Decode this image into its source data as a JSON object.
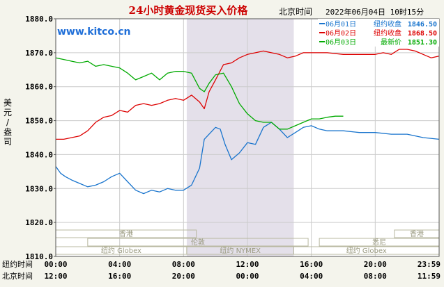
{
  "chart_data": {
    "type": "line",
    "title": "24小时黄金现货买入价格",
    "watermark": "www.kitco.cn",
    "timestamp_prefix": "北京时间",
    "timestamp": "2022年06月04日 10时15分",
    "ylabel": "美元/盎司",
    "ylim": [
      1810,
      1880
    ],
    "y_ticks": [
      "1880.0",
      "1870.0",
      "1860.0",
      "1850.0",
      "1840.0",
      "1830.0",
      "1820.0",
      "1810.0"
    ],
    "xlim": [
      0,
      24
    ],
    "grid": true,
    "legend_position": "top-right",
    "highlight_band": [
      8.2,
      14.9
    ],
    "time_rows": [
      {
        "label": "纽约时间",
        "ticks": [
          "00:00",
          "04:00",
          "08:00",
          "12:00",
          "16:00",
          "20:00",
          "23:59"
        ]
      },
      {
        "label": "北京时间",
        "ticks": [
          "12:00",
          "16:00",
          "20:00",
          "00:00",
          "04:00",
          "08:00",
          "11:59"
        ]
      }
    ],
    "markets": [
      {
        "name": "香港",
        "row": 0,
        "segments": [
          [
            0,
            8.8
          ],
          [
            21.2,
            24
          ]
        ]
      },
      {
        "name": "伦敦",
        "row": 1,
        "segments": [
          [
            2,
            15.8
          ]
        ]
      },
      {
        "name": "悉尼",
        "row": 1,
        "segments": [
          [
            16.5,
            24
          ]
        ]
      },
      {
        "name": "纽约 Globex",
        "row": 2,
        "segments": [
          [
            0,
            8.2
          ],
          [
            14.9,
            24
          ]
        ]
      },
      {
        "name": "纽约 NYMEX",
        "row": 2,
        "segments": [
          [
            8.2,
            14.9
          ]
        ]
      }
    ],
    "series": [
      {
        "name": "06月01日",
        "kind": "纽约收盘",
        "value": "1846.50",
        "color": "#1874cd",
        "x": [
          0,
          0.3,
          0.6,
          1.0,
          1.5,
          2.0,
          2.5,
          3.0,
          3.5,
          4.0,
          4.5,
          5.0,
          5.5,
          6.0,
          6.5,
          7.0,
          7.5,
          8.0,
          8.5,
          9.0,
          9.3,
          9.6,
          10.0,
          10.3,
          10.6,
          11.0,
          11.5,
          12.0,
          12.5,
          13.0,
          13.5,
          14.0,
          14.5,
          15.0,
          15.5,
          16.0,
          16.5,
          17.0,
          18.0,
          19.0,
          20.0,
          21.0,
          22.0,
          23.0,
          23.99
        ],
        "y": [
          1836.5,
          1834.5,
          1833.5,
          1832.5,
          1831.5,
          1830.5,
          1831.0,
          1832.0,
          1833.5,
          1834.5,
          1832.0,
          1829.5,
          1828.5,
          1829.5,
          1829.0,
          1830.0,
          1829.5,
          1829.5,
          1831.0,
          1836.0,
          1844.5,
          1846.0,
          1848.0,
          1847.5,
          1843.0,
          1838.5,
          1840.5,
          1843.5,
          1843.0,
          1848.0,
          1849.5,
          1847.5,
          1845.0,
          1846.5,
          1848.0,
          1848.5,
          1847.5,
          1847.0,
          1847.0,
          1846.5,
          1846.5,
          1846.0,
          1846.0,
          1845.0,
          1844.5
        ]
      },
      {
        "name": "06月02日",
        "kind": "纽约收盘",
        "value": "1868.50",
        "color": "#dd0000",
        "x": [
          0,
          0.5,
          1.0,
          1.5,
          2.0,
          2.5,
          3.0,
          3.5,
          4.0,
          4.5,
          5.0,
          5.5,
          6.0,
          6.5,
          7.0,
          7.5,
          8.0,
          8.5,
          9.0,
          9.3,
          9.6,
          10.0,
          10.5,
          11.0,
          11.5,
          12.0,
          12.5,
          13.0,
          13.5,
          14.0,
          14.5,
          15.0,
          15.5,
          16.0,
          17.0,
          18.0,
          19.0,
          20.0,
          20.5,
          21.0,
          21.5,
          22.0,
          22.5,
          23.0,
          23.5,
          23.99
        ],
        "y": [
          1844.5,
          1844.5,
          1845.0,
          1845.5,
          1847.0,
          1849.5,
          1851.0,
          1851.5,
          1853.0,
          1852.5,
          1854.5,
          1855.0,
          1854.5,
          1855.0,
          1856.0,
          1856.5,
          1856.0,
          1857.5,
          1855.5,
          1853.5,
          1858.5,
          1862.0,
          1866.5,
          1867.0,
          1868.5,
          1869.5,
          1870.0,
          1870.5,
          1870.0,
          1869.5,
          1868.5,
          1869.0,
          1870.0,
          1870.0,
          1870.0,
          1869.5,
          1869.5,
          1869.5,
          1870.0,
          1869.5,
          1871.0,
          1871.0,
          1870.5,
          1869.5,
          1868.5,
          1869.0
        ]
      },
      {
        "name": "06月03日",
        "kind": "最新价",
        "value": "1851.30",
        "color": "#00aa00",
        "x": [
          0,
          0.5,
          1.0,
          1.5,
          2.0,
          2.5,
          3.0,
          3.5,
          4.0,
          4.5,
          5.0,
          5.5,
          6.0,
          6.5,
          7.0,
          7.5,
          8.0,
          8.5,
          9.0,
          9.3,
          9.6,
          10.0,
          10.5,
          11.0,
          11.5,
          12.0,
          12.5,
          13.0,
          13.5,
          14.0,
          14.5,
          15.0,
          15.5,
          16.0,
          16.5,
          17.0,
          17.5,
          18.0
        ],
        "y": [
          1868.5,
          1868.0,
          1867.5,
          1867.0,
          1867.5,
          1866.0,
          1866.5,
          1866.0,
          1865.5,
          1864.0,
          1862.0,
          1863.0,
          1864.0,
          1862.0,
          1864.0,
          1864.5,
          1864.5,
          1864.0,
          1859.5,
          1858.5,
          1861.0,
          1863.5,
          1864.0,
          1860.0,
          1855.0,
          1852.0,
          1850.0,
          1849.5,
          1849.5,
          1847.5,
          1847.5,
          1848.5,
          1849.5,
          1850.5,
          1850.5,
          1851.0,
          1851.3,
          1851.3
        ]
      }
    ]
  }
}
